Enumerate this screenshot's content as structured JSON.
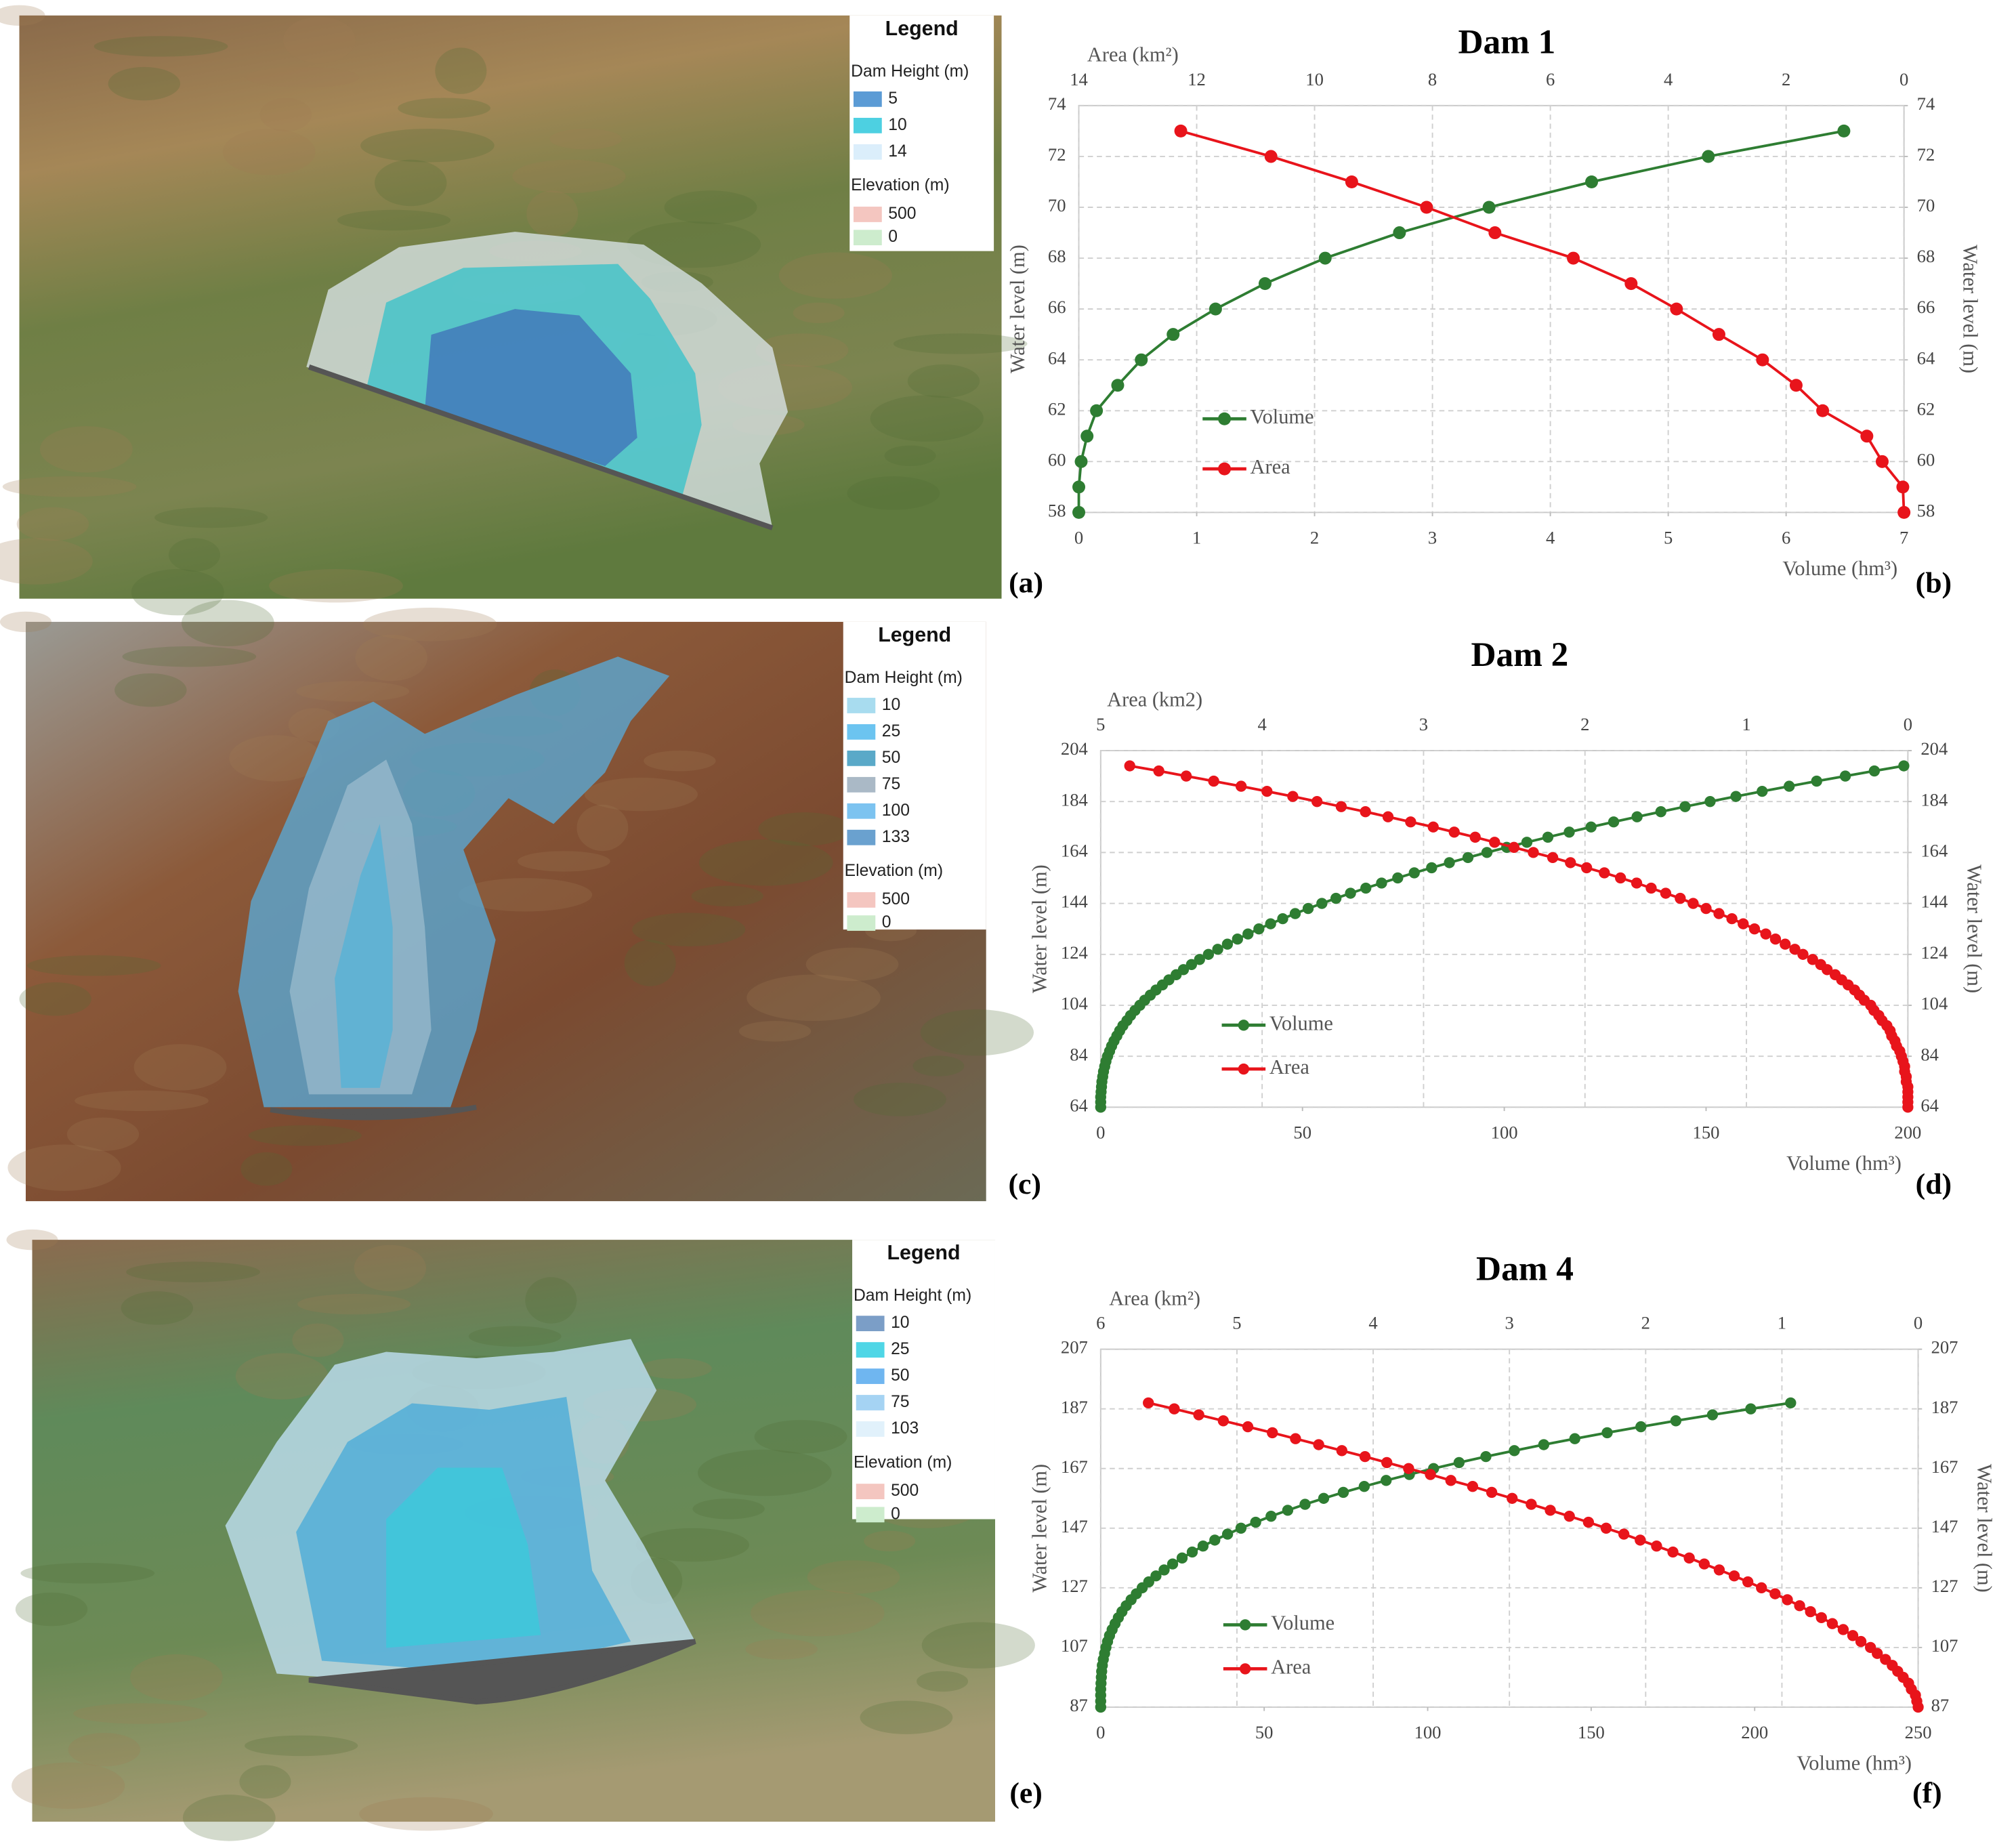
{
  "chart_data": [
    {
      "type": "line",
      "title": "Dam 1",
      "panel_label": "(b)",
      "x_label": "Volume (hm³)",
      "x2_label": "Area (km²)",
      "y_label": "Water level (m)",
      "y2_label": "Water level (m)",
      "xlim": [
        0,
        7
      ],
      "xticks": [
        0,
        1,
        2,
        3,
        4,
        5,
        6,
        7
      ],
      "x2lim": [
        14,
        0
      ],
      "x2ticks": [
        14,
        12,
        10,
        8,
        6,
        4,
        2,
        0
      ],
      "ylim": [
        58,
        74
      ],
      "yticks": [
        58,
        60,
        62,
        64,
        66,
        68,
        70,
        72,
        74
      ],
      "y2lim": [
        58,
        74
      ],
      "y2ticks": [
        58,
        60,
        62,
        64,
        66,
        68,
        70,
        72,
        74
      ],
      "grid": true,
      "legend": "lower-left",
      "series": [
        {
          "name": "Volume",
          "color": "#2e7d32",
          "axis": "x",
          "x": [
            0,
            0,
            0.02,
            0.07,
            0.15,
            0.33,
            0.53,
            0.8,
            1.16,
            1.58,
            2.09,
            2.72,
            3.48,
            4.35,
            5.34,
            6.49
          ],
          "values": [
            58,
            59,
            60,
            61,
            62,
            63,
            64,
            65,
            66,
            67,
            68,
            69,
            70,
            71,
            72,
            73
          ]
        },
        {
          "name": "Area",
          "color": "#e8141b",
          "axis": "x2",
          "x": [
            0,
            0.02,
            0.37,
            0.63,
            1.38,
            1.83,
            2.4,
            3.14,
            3.86,
            4.63,
            5.61,
            6.94,
            8.1,
            9.37,
            10.74,
            12.27
          ],
          "values": [
            58,
            59,
            60,
            61,
            62,
            63,
            64,
            65,
            66,
            67,
            68,
            69,
            70,
            71,
            72,
            73
          ]
        }
      ]
    },
    {
      "type": "line",
      "title": "Dam 2",
      "panel_label": "(d)",
      "x_label": "Volume (hm³)",
      "x2_label": "Area (km2)",
      "y_label": "Water level (m)",
      "y2_label": "Water level (m)",
      "xlim": [
        0,
        200
      ],
      "xticks": [
        0,
        50,
        100,
        150,
        200
      ],
      "x2lim": [
        5,
        0
      ],
      "x2ticks": [
        5,
        4,
        3,
        2,
        1,
        0
      ],
      "ylim": [
        64,
        204
      ],
      "yticks": [
        64,
        84,
        104,
        124,
        144,
        164,
        184,
        204
      ],
      "y2lim": [
        64,
        204
      ],
      "y2ticks": [
        64,
        84,
        104,
        124,
        144,
        164,
        184,
        204
      ],
      "grid": true,
      "legend": "lower-left",
      "series": [
        {
          "name": "Volume",
          "color": "#2e7d32",
          "axis": "x",
          "x": [
            0,
            0,
            0,
            0.1,
            0.2,
            0.3,
            0.5,
            0.7,
            1.0,
            1.3,
            1.7,
            2.2,
            2.7,
            3.3,
            4.0,
            4.7,
            5.5,
            6.5,
            7.4,
            8.5,
            9.7,
            10.9,
            12.3,
            13.7,
            15.3,
            16.9,
            18.7,
            20.5,
            22.5,
            24.5,
            26.7,
            29.0,
            31.4,
            33.9,
            36.5,
            39.2,
            42.1,
            45.1,
            48.2,
            51.4,
            54.8,
            58.3,
            61.9,
            65.7,
            69.6,
            73.6,
            77.7,
            82.0,
            86.4,
            91.0,
            95.7,
            100.6,
            105.6,
            110.8,
            116.1,
            121.5,
            127.1,
            132.9,
            138.8,
            144.8,
            151.0,
            157.4,
            163.9,
            170.6,
            177.4,
            184.5,
            191.7,
            199
          ],
          "values": [
            64,
            66,
            68,
            70,
            72,
            74,
            76,
            78,
            80,
            82,
            84,
            86,
            88,
            90,
            92,
            94,
            96,
            98,
            100,
            102,
            104,
            106,
            108,
            110,
            112,
            114,
            116,
            118,
            120,
            122,
            124,
            126,
            128,
            130,
            132,
            134,
            136,
            138,
            140,
            142,
            144,
            146,
            148,
            150,
            152,
            154,
            156,
            158,
            160,
            162,
            164,
            166,
            168,
            170,
            172,
            174,
            176,
            178,
            180,
            182,
            184,
            186,
            188,
            190,
            192,
            194,
            196,
            198
          ]
        },
        {
          "name": "Area",
          "color": "#e8141b",
          "axis": "x2",
          "x": [
            0,
            0,
            0,
            0,
            0,
            0.01,
            0.01,
            0.02,
            0.02,
            0.03,
            0.04,
            0.05,
            0.07,
            0.08,
            0.1,
            0.11,
            0.13,
            0.16,
            0.18,
            0.21,
            0.23,
            0.27,
            0.3,
            0.33,
            0.37,
            0.41,
            0.45,
            0.5,
            0.54,
            0.59,
            0.65,
            0.7,
            0.76,
            0.82,
            0.88,
            0.95,
            1.02,
            1.09,
            1.17,
            1.25,
            1.33,
            1.41,
            1.5,
            1.59,
            1.68,
            1.78,
            1.88,
            1.99,
            2.09,
            2.2,
            2.32,
            2.44,
            2.56,
            2.68,
            2.81,
            2.94,
            3.08,
            3.22,
            3.36,
            3.51,
            3.66,
            3.81,
            3.97,
            4.13,
            4.3,
            4.47,
            4.64,
            4.82
          ],
          "values": [
            64,
            66,
            68,
            70,
            72,
            74,
            76,
            78,
            80,
            82,
            84,
            86,
            88,
            90,
            92,
            94,
            96,
            98,
            100,
            102,
            104,
            106,
            108,
            110,
            112,
            114,
            116,
            118,
            120,
            122,
            124,
            126,
            128,
            130,
            132,
            134,
            136,
            138,
            140,
            142,
            144,
            146,
            148,
            150,
            152,
            154,
            156,
            158,
            160,
            162,
            164,
            166,
            168,
            170,
            172,
            174,
            176,
            178,
            180,
            182,
            184,
            186,
            188,
            190,
            192,
            194,
            196,
            198
          ]
        }
      ]
    },
    {
      "type": "line",
      "title": "Dam 4",
      "panel_label": "(f)",
      "x_label": "Volume (hm³)",
      "x2_label": "Area (km²)",
      "y_label": "Water level (m)",
      "y2_label": "Water level (m)",
      "xlim": [
        0,
        250
      ],
      "xticks": [
        0,
        50,
        100,
        150,
        200,
        250
      ],
      "x2lim": [
        6,
        0
      ],
      "x2ticks": [
        6,
        5,
        4,
        3,
        2,
        1,
        0
      ],
      "ylim": [
        87,
        207
      ],
      "yticks": [
        87,
        107,
        127,
        147,
        167,
        187,
        207
      ],
      "y2lim": [
        87,
        207
      ],
      "y2ticks": [
        87,
        107,
        127,
        147,
        167,
        187,
        207
      ],
      "grid": true,
      "legend": "lower-left",
      "series": [
        {
          "name": "Volume",
          "color": "#2e7d32",
          "axis": "x",
          "x": [
            0,
            0,
            0,
            0,
            0.1,
            0.2,
            0.3,
            0.5,
            0.8,
            1.2,
            1.6,
            2.1,
            2.7,
            3.5,
            4.4,
            5.4,
            6.5,
            7.8,
            9.3,
            10.9,
            12.7,
            14.7,
            16.9,
            19.4,
            22,
            24.9,
            28,
            31.3,
            34.9,
            38.8,
            42.9,
            47.4,
            52.1,
            57.2,
            62.5,
            68.2,
            74.2,
            80.6,
            87.3,
            94.4,
            101.8,
            109.6,
            117.8,
            126.5,
            135.5,
            145,
            154.9,
            165.2,
            175.9,
            187.1,
            198.8,
            211
          ],
          "values": [
            87,
            89,
            91,
            93,
            95,
            97,
            99,
            101,
            103,
            105,
            107,
            109,
            111,
            113,
            115,
            117,
            119,
            121,
            123,
            125,
            127,
            129,
            131,
            133,
            135,
            137,
            139,
            141,
            143,
            145,
            147,
            149,
            151,
            153,
            155,
            157,
            159,
            161,
            163,
            165,
            167,
            169,
            171,
            173,
            175,
            177,
            179,
            181,
            183,
            185,
            187,
            189
          ]
        },
        {
          "name": "Area",
          "color": "#e8141b",
          "axis": "x2",
          "x": [
            0,
            0.01,
            0.02,
            0.05,
            0.07,
            0.11,
            0.15,
            0.19,
            0.24,
            0.3,
            0.35,
            0.42,
            0.48,
            0.55,
            0.63,
            0.71,
            0.79,
            0.87,
            0.96,
            1.05,
            1.15,
            1.25,
            1.35,
            1.46,
            1.57,
            1.68,
            1.8,
            1.92,
            2.04,
            2.16,
            2.29,
            2.42,
            2.56,
            2.7,
            2.84,
            2.98,
            3.13,
            3.27,
            3.43,
            3.58,
            3.74,
            3.9,
            4.06,
            4.23,
            4.4,
            4.57,
            4.74,
            4.92,
            5.1,
            5.28,
            5.46,
            5.65
          ],
          "values": [
            87,
            89,
            91,
            93,
            95,
            97,
            99,
            101,
            103,
            105,
            107,
            109,
            111,
            113,
            115,
            117,
            119,
            121,
            123,
            125,
            127,
            129,
            131,
            133,
            135,
            137,
            139,
            141,
            143,
            145,
            147,
            149,
            151,
            153,
            155,
            157,
            159,
            161,
            163,
            165,
            167,
            169,
            171,
            173,
            175,
            177,
            179,
            181,
            183,
            185,
            187,
            189
          ]
        }
      ]
    }
  ],
  "maps": [
    {
      "panel_label": "(a)",
      "legend": {
        "title": "Legend",
        "groups": [
          {
            "title": "Dam Height (m)",
            "items": [
              {
                "label": "5",
                "color": "#5b9bd5"
              },
              {
                "label": "10",
                "color": "#4dd0e1"
              },
              {
                "label": "14",
                "color": "#dbeefb"
              }
            ]
          },
          {
            "title": "Elevation (m)",
            "items": [
              {
                "label": "500",
                "color": "#f4c6c0"
              },
              {
                "label": "0",
                "color": "#cdeccd"
              }
            ]
          }
        ]
      }
    },
    {
      "panel_label": "(c)",
      "legend": {
        "title": "Legend",
        "groups": [
          {
            "title": "Dam Height (m)",
            "items": [
              {
                "label": "10",
                "color": "#a8dcef"
              },
              {
                "label": "25",
                "color": "#6cc4f0"
              },
              {
                "label": "50",
                "color": "#5aa9c8"
              },
              {
                "label": "75",
                "color": "#aab9c6"
              },
              {
                "label": "100",
                "color": "#7cc3f0"
              },
              {
                "label": "133",
                "color": "#6aa1cf"
              }
            ]
          },
          {
            "title": "Elevation (m)",
            "items": [
              {
                "label": "500",
                "color": "#f4c6c0"
              },
              {
                "label": "0",
                "color": "#cdeccd"
              }
            ]
          }
        ]
      }
    },
    {
      "panel_label": "(e)",
      "legend": {
        "title": "Legend",
        "groups": [
          {
            "title": "Dam Height (m)",
            "items": [
              {
                "label": "10",
                "color": "#7b9ec7"
              },
              {
                "label": "25",
                "color": "#4fd6e6"
              },
              {
                "label": "50",
                "color": "#6fb6f0"
              },
              {
                "label": "75",
                "color": "#a5d3f3"
              },
              {
                "label": "103",
                "color": "#e1f1fb"
              }
            ]
          },
          {
            "title": "Elevation (m)",
            "items": [
              {
                "label": "500",
                "color": "#f4c6c0"
              },
              {
                "label": "0",
                "color": "#cdeccd"
              }
            ]
          }
        ]
      }
    }
  ]
}
